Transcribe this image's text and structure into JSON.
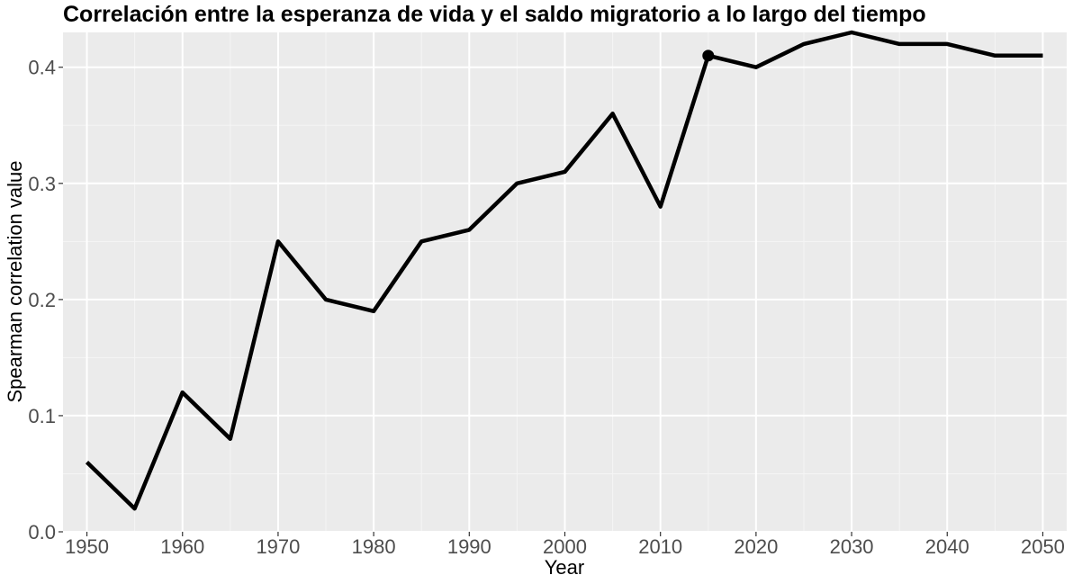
{
  "chart_data": {
    "type": "line",
    "title": "Correlación entre la esperanza de vida y el saldo migratorio a lo largo del tiempo",
    "xlabel": "Year",
    "ylabel": "Spearman correlation value",
    "xlim": [
      1947.5,
      2052.5
    ],
    "ylim": [
      0.0,
      0.43
    ],
    "x_ticks": [
      1950,
      1960,
      1970,
      1980,
      1990,
      2000,
      2010,
      2020,
      2030,
      2040,
      2050
    ],
    "y_ticks": [
      0.0,
      0.1,
      0.2,
      0.3,
      0.4
    ],
    "y_tick_labels": [
      "0.0",
      "0.1",
      "0.2",
      "0.3",
      "0.4"
    ],
    "grid": true,
    "legend": "none",
    "series": [
      {
        "color": "#000000",
        "x": [
          1950,
          1955,
          1960,
          1965,
          1970,
          1975,
          1980,
          1985,
          1990,
          1995,
          2000,
          2005,
          2010,
          2015,
          2020,
          2025,
          2030,
          2035,
          2040,
          2045,
          2050
        ],
        "y": [
          0.06,
          0.02,
          0.12,
          0.08,
          0.25,
          0.2,
          0.19,
          0.25,
          0.26,
          0.3,
          0.31,
          0.36,
          0.28,
          0.41,
          0.4,
          0.42,
          0.43,
          0.42,
          0.42,
          0.41,
          0.41
        ]
      }
    ],
    "highlight_point": {
      "x": 2015,
      "y": 0.41
    },
    "colors": {
      "panel_background": "#ebebeb",
      "grid_major": "#ffffff",
      "grid_minor": "#f5f5f5",
      "line": "#000000"
    }
  }
}
